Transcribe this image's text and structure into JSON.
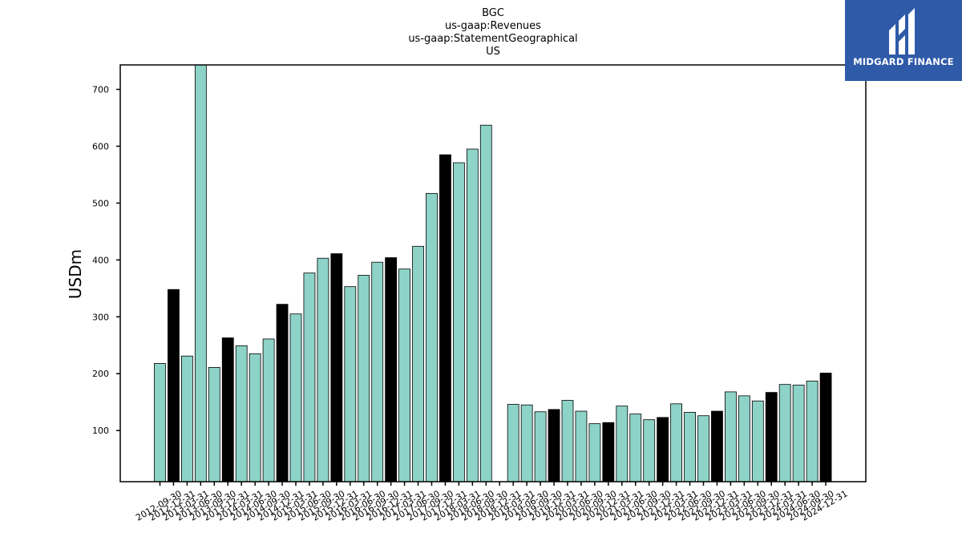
{
  "chart_data": {
    "type": "bar",
    "title_lines": [
      "BGC",
      "us-gaap:Revenues",
      "us-gaap:StatementGeographical",
      "US"
    ],
    "ylabel": "USDm",
    "xlabel": "",
    "ylim": [
      10,
      743
    ],
    "yticks": [
      100,
      200,
      300,
      400,
      500,
      600,
      700
    ],
    "colors": {
      "quarter": "#8dd3c7",
      "year_end": "#000000",
      "edge": "#000000"
    },
    "categories": [
      "2012-09-30",
      "2012-12-31",
      "2013-03-31",
      "2013-06-30",
      "2013-09-30",
      "2013-12-31",
      "2014-03-31",
      "2014-06-30",
      "2014-09-30",
      "2014-12-31",
      "2015-03-31",
      "2015-06-30",
      "2015-09-30",
      "2015-12-31",
      "2016-03-31",
      "2016-06-30",
      "2016-09-30",
      "2016-12-31",
      "2017-03-31",
      "2017-06-30",
      "2017-09-30",
      "2017-12-31",
      "2018-03-31",
      "2018-06-30",
      "2018-09-30",
      "2018-12-31",
      "2019-03-31",
      "2019-06-30",
      "2019-09-30",
      "2019-12-31",
      "2020-03-31",
      "2020-06-30",
      "2020-09-30",
      "2020-12-31",
      "2021-03-31",
      "2021-06-30",
      "2021-09-30",
      "2021-12-31",
      "2022-03-31",
      "2022-06-30",
      "2022-09-30",
      "2022-12-31",
      "2023-03-31",
      "2023-06-30",
      "2023-09-30",
      "2023-12-31",
      "2024-03-31",
      "2024-06-30",
      "2024-09-30",
      "2024-12-31"
    ],
    "series": [
      {
        "values": [
          218,
          348,
          231,
          743,
          211,
          263,
          249,
          235,
          261,
          322,
          305,
          377,
          403,
          411,
          353,
          373,
          396,
          404,
          384,
          424,
          517,
          585,
          571,
          595,
          637,
          null,
          146,
          145,
          133,
          137,
          153,
          134,
          112,
          114,
          143,
          129,
          119,
          123,
          147,
          132,
          126,
          134,
          168,
          161,
          152,
          167,
          181,
          180,
          187,
          201
        ],
        "year_end": [
          false,
          true,
          false,
          false,
          false,
          true,
          false,
          false,
          false,
          true,
          false,
          false,
          false,
          true,
          false,
          false,
          false,
          true,
          false,
          false,
          false,
          true,
          false,
          false,
          false,
          true,
          false,
          false,
          false,
          true,
          false,
          false,
          false,
          true,
          false,
          false,
          false,
          true,
          false,
          false,
          false,
          true,
          false,
          false,
          false,
          true,
          false,
          false,
          false,
          true
        ]
      }
    ],
    "grid": false,
    "legend": "none"
  },
  "logo": {
    "text": "MIDGARD FINANCE",
    "icon": "midgard-logo-icon"
  }
}
